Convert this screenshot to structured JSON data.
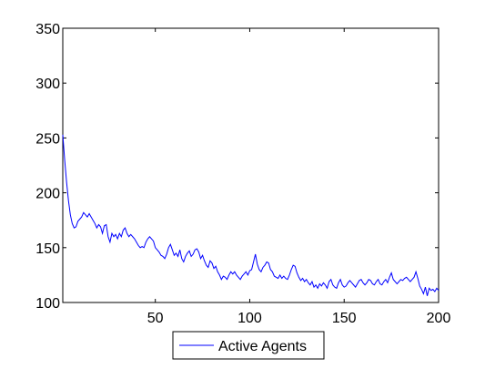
{
  "chart_data": {
    "type": "line",
    "title": "",
    "xlabel": "",
    "ylabel": "",
    "xlim": [
      1,
      200
    ],
    "ylim": [
      100,
      350
    ],
    "xticks": [
      50,
      100,
      150,
      200
    ],
    "yticks": [
      100,
      150,
      200,
      250,
      300,
      350
    ],
    "grid": false,
    "legend_position": "bottom-center",
    "colors": {
      "series": "#0000ff",
      "axes": "#000000",
      "background": "#ffffff"
    },
    "series": [
      {
        "name": "Active Agents",
        "points": [
          [
            1,
            253
          ],
          [
            2,
            230
          ],
          [
            3,
            210
          ],
          [
            4,
            193
          ],
          [
            5,
            180
          ],
          [
            6,
            172
          ],
          [
            7,
            168
          ],
          [
            8,
            169
          ],
          [
            9,
            174
          ],
          [
            10,
            176
          ],
          [
            11,
            178
          ],
          [
            12,
            182
          ],
          [
            13,
            180
          ],
          [
            14,
            178
          ],
          [
            15,
            181
          ],
          [
            16,
            178
          ],
          [
            17,
            175
          ],
          [
            18,
            172
          ],
          [
            19,
            168
          ],
          [
            20,
            171
          ],
          [
            21,
            169
          ],
          [
            22,
            163
          ],
          [
            23,
            170
          ],
          [
            24,
            171
          ],
          [
            25,
            160
          ],
          [
            26,
            155
          ],
          [
            27,
            163
          ],
          [
            28,
            160
          ],
          [
            29,
            162
          ],
          [
            30,
            158
          ],
          [
            31,
            163
          ],
          [
            32,
            160
          ],
          [
            33,
            166
          ],
          [
            34,
            168
          ],
          [
            35,
            163
          ],
          [
            36,
            160
          ],
          [
            37,
            162
          ],
          [
            38,
            160
          ],
          [
            39,
            158
          ],
          [
            40,
            155
          ],
          [
            41,
            152
          ],
          [
            42,
            150
          ],
          [
            43,
            151
          ],
          [
            44,
            150
          ],
          [
            45,
            155
          ],
          [
            46,
            158
          ],
          [
            47,
            160
          ],
          [
            48,
            158
          ],
          [
            49,
            156
          ],
          [
            50,
            150
          ],
          [
            51,
            148
          ],
          [
            52,
            146
          ],
          [
            53,
            143
          ],
          [
            54,
            142
          ],
          [
            55,
            140
          ],
          [
            56,
            144
          ],
          [
            57,
            150
          ],
          [
            58,
            153
          ],
          [
            59,
            148
          ],
          [
            60,
            143
          ],
          [
            61,
            145
          ],
          [
            62,
            142
          ],
          [
            63,
            148
          ],
          [
            64,
            140
          ],
          [
            65,
            137
          ],
          [
            66,
            142
          ],
          [
            67,
            145
          ],
          [
            68,
            147
          ],
          [
            69,
            142
          ],
          [
            70,
            144
          ],
          [
            71,
            148
          ],
          [
            72,
            149
          ],
          [
            73,
            146
          ],
          [
            74,
            140
          ],
          [
            75,
            143
          ],
          [
            76,
            138
          ],
          [
            77,
            134
          ],
          [
            78,
            132
          ],
          [
            79,
            138
          ],
          [
            80,
            136
          ],
          [
            81,
            131
          ],
          [
            82,
            133
          ],
          [
            83,
            128
          ],
          [
            84,
            125
          ],
          [
            85,
            121
          ],
          [
            86,
            124
          ],
          [
            87,
            123
          ],
          [
            88,
            121
          ],
          [
            89,
            125
          ],
          [
            90,
            128
          ],
          [
            91,
            126
          ],
          [
            92,
            128
          ],
          [
            93,
            125
          ],
          [
            94,
            123
          ],
          [
            95,
            121
          ],
          [
            96,
            124
          ],
          [
            97,
            126
          ],
          [
            98,
            128
          ],
          [
            99,
            125
          ],
          [
            100,
            129
          ],
          [
            101,
            130
          ],
          [
            102,
            137
          ],
          [
            103,
            144
          ],
          [
            104,
            135
          ],
          [
            105,
            130
          ],
          [
            106,
            128
          ],
          [
            107,
            132
          ],
          [
            108,
            134
          ],
          [
            109,
            137
          ],
          [
            110,
            136
          ],
          [
            111,
            130
          ],
          [
            112,
            128
          ],
          [
            113,
            124
          ],
          [
            114,
            123
          ],
          [
            115,
            122
          ],
          [
            116,
            125
          ],
          [
            117,
            122
          ],
          [
            118,
            124
          ],
          [
            119,
            122
          ],
          [
            120,
            121
          ],
          [
            121,
            125
          ],
          [
            122,
            130
          ],
          [
            123,
            134
          ],
          [
            124,
            133
          ],
          [
            125,
            127
          ],
          [
            126,
            123
          ],
          [
            127,
            120
          ],
          [
            128,
            122
          ],
          [
            129,
            119
          ],
          [
            130,
            121
          ],
          [
            131,
            118
          ],
          [
            132,
            116
          ],
          [
            133,
            119
          ],
          [
            134,
            114
          ],
          [
            135,
            116
          ],
          [
            136,
            113
          ],
          [
            137,
            117
          ],
          [
            138,
            115
          ],
          [
            139,
            118
          ],
          [
            140,
            116
          ],
          [
            141,
            113
          ],
          [
            142,
            119
          ],
          [
            143,
            121
          ],
          [
            144,
            116
          ],
          [
            145,
            114
          ],
          [
            146,
            113
          ],
          [
            147,
            118
          ],
          [
            148,
            121
          ],
          [
            149,
            116
          ],
          [
            150,
            114
          ],
          [
            151,
            115
          ],
          [
            152,
            118
          ],
          [
            153,
            120
          ],
          [
            154,
            118
          ],
          [
            155,
            116
          ],
          [
            156,
            114
          ],
          [
            157,
            117
          ],
          [
            158,
            120
          ],
          [
            159,
            121
          ],
          [
            160,
            118
          ],
          [
            161,
            116
          ],
          [
            162,
            118
          ],
          [
            163,
            121
          ],
          [
            164,
            120
          ],
          [
            165,
            117
          ],
          [
            166,
            116
          ],
          [
            167,
            119
          ],
          [
            168,
            121
          ],
          [
            169,
            117
          ],
          [
            170,
            116
          ],
          [
            171,
            119
          ],
          [
            172,
            121
          ],
          [
            173,
            118
          ],
          [
            174,
            123
          ],
          [
            175,
            127
          ],
          [
            176,
            121
          ],
          [
            177,
            119
          ],
          [
            178,
            117
          ],
          [
            179,
            119
          ],
          [
            180,
            121
          ],
          [
            181,
            120
          ],
          [
            182,
            122
          ],
          [
            183,
            123
          ],
          [
            184,
            121
          ],
          [
            185,
            119
          ],
          [
            186,
            121
          ],
          [
            187,
            123
          ],
          [
            188,
            128
          ],
          [
            189,
            122
          ],
          [
            190,
            115
          ],
          [
            191,
            112
          ],
          [
            192,
            108
          ],
          [
            193,
            114
          ],
          [
            194,
            106
          ],
          [
            195,
            113
          ],
          [
            196,
            111
          ],
          [
            197,
            112
          ],
          [
            198,
            110
          ],
          [
            199,
            113
          ],
          [
            200,
            111
          ]
        ]
      }
    ]
  }
}
